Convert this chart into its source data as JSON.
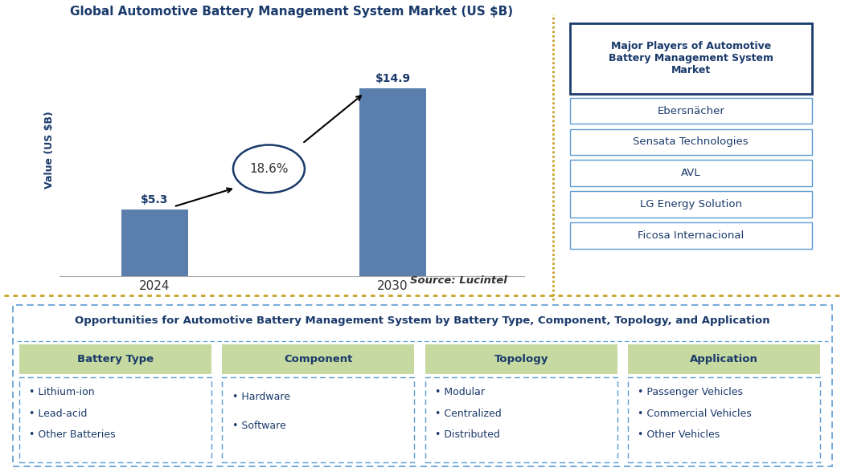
{
  "title": "Global Automotive Battery Management System Market (US $B)",
  "bar_years": [
    "2024",
    "2030"
  ],
  "bar_values": [
    5.3,
    14.9
  ],
  "bar_color": "#5b7fad",
  "cagr_text": "18.6%",
  "value_labels": [
    "$5.3",
    "$14.9"
  ],
  "ylabel": "Value (US $B)",
  "source_text": "Source: Lucintel",
  "right_panel_title": "Major Players of Automotive\nBattery Management System\nMarket",
  "right_panel_players": [
    "Ebersпächer",
    "Sensata Technologies",
    "AVL",
    "LG Energy Solution",
    "Ficosa Internacional"
  ],
  "bottom_title": "Opportunities for Automotive Battery Management System by Battery Type, Component, Topology, and Application",
  "bottom_categories": [
    "Battery Type",
    "Component",
    "Topology",
    "Application"
  ],
  "bottom_items": [
    [
      "• Lithium-ion",
      "• Lead-acid",
      "• Other Batteries"
    ],
    [
      "• Hardware",
      "• Software"
    ],
    [
      "• Modular",
      "• Centralized",
      "• Distributed"
    ],
    [
      "• Passenger Vehicles",
      "• Commercial Vehicles",
      "• Other Vehicles"
    ]
  ],
  "divider_color": "#c8a227",
  "category_bg_color": "#c5d9a0",
  "category_text_color": "#1a3a6b",
  "item_text_color": "#1a3a6b",
  "title_color": "#1a3a6b",
  "player_box_bg": "#ffffff",
  "player_box_border": "#5b9bd5",
  "right_title_border": "#1a3a6b",
  "bottom_box_border": "#5b9bd5",
  "ylim": [
    0,
    20
  ]
}
